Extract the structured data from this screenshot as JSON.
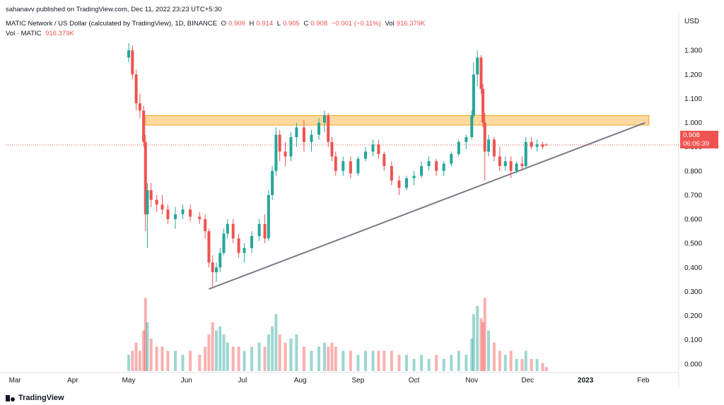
{
  "header": {
    "published": "sahanavv published on TradingView.com, Dec 11, 2022 23:23 UTC+5:30",
    "symbol": "MATIC Network / US Dollar (calculated by TradingView), 1D, BINANCE",
    "o_label": "O",
    "o_value": "0.909",
    "h_label": "H",
    "h_value": "0.914",
    "l_label": "L",
    "l_value": "0.905",
    "c_label": "C",
    "c_value": "0.908",
    "change": "−0.001 (−0.11%)",
    "vol_label": "Vol",
    "vol_value": "916.379K",
    "vol2_label": "Vol · MATIC",
    "vol2_value": "916.379K"
  },
  "brand": "TradingView",
  "price_tag": {
    "price": "0.908",
    "countdown": "06:06:39"
  },
  "colors": {
    "up": "#26a69a",
    "down": "#ef5350",
    "zone_fill": "#ffcc80",
    "zone_stroke": "#f5a623",
    "trendline": "#787b86"
  },
  "chart_data": {
    "type": "candlestick",
    "currency": "USD",
    "y_ticks": [
      "1.300",
      "1.200",
      "1.100",
      "1.000",
      "0.900",
      "0.800",
      "0.700",
      "0.600",
      "0.500",
      "0.400",
      "0.300",
      "0.200",
      "0.100",
      "0.000"
    ],
    "ylim": [
      -0.03,
      1.45
    ],
    "x_ticks": [
      "Mar",
      "Apr",
      "May",
      "Jun",
      "Jul",
      "Aug",
      "Sep",
      "Oct",
      "Nov",
      "Dec",
      "2023",
      "Feb"
    ],
    "bold_x_ticks": [
      "2023"
    ],
    "current_price": 0.908,
    "resistance_zone": {
      "low": 0.99,
      "high": 1.03,
      "from": "2022-05-10",
      "to": "2023-02-04"
    },
    "trendline": {
      "from": {
        "date": "2022-06-13",
        "price": 0.31
      },
      "to": {
        "date": "2023-02-02",
        "price": 1.0
      }
    },
    "candles": [
      [
        "2022-05-01",
        1.27,
        1.33,
        1.25,
        1.3,
        0.04
      ],
      [
        "2022-05-03",
        1.3,
        1.32,
        1.18,
        1.2,
        0.05
      ],
      [
        "2022-05-05",
        1.2,
        1.22,
        1.05,
        1.08,
        0.07
      ],
      [
        "2022-05-07",
        1.08,
        1.12,
        1.02,
        1.05,
        0.05
      ],
      [
        "2022-05-09",
        1.05,
        1.07,
        0.9,
        0.92,
        0.1
      ],
      [
        "2022-05-10",
        0.92,
        0.95,
        0.55,
        0.62,
        0.18
      ],
      [
        "2022-05-11",
        0.62,
        0.75,
        0.48,
        0.72,
        0.12
      ],
      [
        "2022-05-13",
        0.72,
        0.75,
        0.65,
        0.68,
        0.08
      ],
      [
        "2022-05-16",
        0.68,
        0.7,
        0.63,
        0.66,
        0.06
      ],
      [
        "2022-05-19",
        0.66,
        0.7,
        0.62,
        0.64,
        0.06
      ],
      [
        "2022-05-22",
        0.64,
        0.66,
        0.58,
        0.6,
        0.05
      ],
      [
        "2022-05-26",
        0.6,
        0.65,
        0.56,
        0.62,
        0.05
      ],
      [
        "2022-05-30",
        0.62,
        0.66,
        0.6,
        0.64,
        0.04
      ],
      [
        "2022-06-03",
        0.64,
        0.66,
        0.59,
        0.61,
        0.05
      ],
      [
        "2022-06-08",
        0.61,
        0.63,
        0.58,
        0.6,
        0.04
      ],
      [
        "2022-06-11",
        0.6,
        0.62,
        0.52,
        0.55,
        0.06
      ],
      [
        "2022-06-13",
        0.55,
        0.56,
        0.4,
        0.42,
        0.09
      ],
      [
        "2022-06-15",
        0.42,
        0.45,
        0.32,
        0.38,
        0.12
      ],
      [
        "2022-06-17",
        0.38,
        0.42,
        0.34,
        0.4,
        0.1
      ],
      [
        "2022-06-19",
        0.4,
        0.48,
        0.38,
        0.46,
        0.11
      ],
      [
        "2022-06-21",
        0.46,
        0.56,
        0.45,
        0.54,
        0.09
      ],
      [
        "2022-06-23",
        0.54,
        0.6,
        0.52,
        0.58,
        0.07
      ],
      [
        "2022-06-26",
        0.58,
        0.6,
        0.5,
        0.52,
        0.06
      ],
      [
        "2022-06-29",
        0.52,
        0.54,
        0.44,
        0.46,
        0.06
      ],
      [
        "2022-07-02",
        0.46,
        0.5,
        0.42,
        0.48,
        0.05
      ],
      [
        "2022-07-06",
        0.48,
        0.55,
        0.46,
        0.53,
        0.06
      ],
      [
        "2022-07-10",
        0.53,
        0.6,
        0.51,
        0.58,
        0.07
      ],
      [
        "2022-07-13",
        0.58,
        0.62,
        0.5,
        0.52,
        0.06
      ],
      [
        "2022-07-15",
        0.52,
        0.72,
        0.51,
        0.7,
        0.09
      ],
      [
        "2022-07-17",
        0.7,
        0.82,
        0.68,
        0.8,
        0.11
      ],
      [
        "2022-07-19",
        0.8,
        0.98,
        0.78,
        0.95,
        0.14
      ],
      [
        "2022-07-21",
        0.95,
        0.97,
        0.84,
        0.88,
        0.09
      ],
      [
        "2022-07-24",
        0.88,
        0.92,
        0.82,
        0.86,
        0.07
      ],
      [
        "2022-07-27",
        0.86,
        0.96,
        0.84,
        0.94,
        0.08
      ],
      [
        "2022-07-30",
        0.94,
        1.0,
        0.9,
        0.98,
        0.09
      ],
      [
        "2022-08-03",
        0.98,
        1.01,
        0.88,
        0.92,
        0.06
      ],
      [
        "2022-08-07",
        0.92,
        0.97,
        0.88,
        0.95,
        0.05
      ],
      [
        "2022-08-11",
        0.95,
        1.02,
        0.93,
        1.0,
        0.06
      ],
      [
        "2022-08-14",
        1.0,
        1.05,
        0.96,
        1.03,
        0.07
      ],
      [
        "2022-08-16",
        1.03,
        1.04,
        0.9,
        0.92,
        0.06
      ],
      [
        "2022-08-18",
        0.92,
        0.94,
        0.84,
        0.86,
        0.07
      ],
      [
        "2022-08-20",
        0.86,
        0.88,
        0.78,
        0.8,
        0.06
      ],
      [
        "2022-08-24",
        0.8,
        0.86,
        0.78,
        0.84,
        0.05
      ],
      [
        "2022-08-28",
        0.84,
        0.86,
        0.77,
        0.79,
        0.05
      ],
      [
        "2022-09-01",
        0.79,
        0.86,
        0.78,
        0.85,
        0.04
      ],
      [
        "2022-09-05",
        0.85,
        0.9,
        0.84,
        0.88,
        0.05
      ],
      [
        "2022-09-09",
        0.88,
        0.93,
        0.86,
        0.91,
        0.05
      ],
      [
        "2022-09-12",
        0.91,
        0.93,
        0.85,
        0.87,
        0.05
      ],
      [
        "2022-09-15",
        0.87,
        0.88,
        0.8,
        0.82,
        0.05
      ],
      [
        "2022-09-19",
        0.82,
        0.84,
        0.74,
        0.76,
        0.05
      ],
      [
        "2022-09-23",
        0.76,
        0.78,
        0.7,
        0.73,
        0.04
      ],
      [
        "2022-09-27",
        0.73,
        0.78,
        0.72,
        0.77,
        0.04
      ],
      [
        "2022-10-01",
        0.77,
        0.8,
        0.74,
        0.78,
        0.03
      ],
      [
        "2022-10-05",
        0.78,
        0.84,
        0.77,
        0.82,
        0.04
      ],
      [
        "2022-10-09",
        0.82,
        0.86,
        0.8,
        0.84,
        0.03
      ],
      [
        "2022-10-13",
        0.84,
        0.85,
        0.78,
        0.8,
        0.04
      ],
      [
        "2022-10-17",
        0.8,
        0.84,
        0.78,
        0.83,
        0.03
      ],
      [
        "2022-10-21",
        0.83,
        0.88,
        0.82,
        0.87,
        0.04
      ],
      [
        "2022-10-25",
        0.87,
        0.93,
        0.86,
        0.92,
        0.05
      ],
      [
        "2022-10-29",
        0.92,
        0.95,
        0.89,
        0.94,
        0.04
      ],
      [
        "2022-11-01",
        0.94,
        1.05,
        0.93,
        1.03,
        0.08
      ],
      [
        "2022-11-02",
        1.03,
        1.25,
        1.02,
        1.2,
        0.14
      ],
      [
        "2022-11-04",
        1.2,
        1.3,
        1.15,
        1.27,
        0.16
      ],
      [
        "2022-11-06",
        1.27,
        1.28,
        1.12,
        1.14,
        0.13
      ],
      [
        "2022-11-07",
        1.14,
        1.16,
        0.98,
        1.0,
        0.12
      ],
      [
        "2022-11-08",
        1.0,
        1.04,
        0.76,
        0.88,
        0.18
      ],
      [
        "2022-11-10",
        0.88,
        0.95,
        0.86,
        0.93,
        0.1
      ],
      [
        "2022-11-13",
        0.93,
        0.94,
        0.84,
        0.86,
        0.07
      ],
      [
        "2022-11-16",
        0.86,
        0.9,
        0.8,
        0.82,
        0.05
      ],
      [
        "2022-11-19",
        0.82,
        0.86,
        0.8,
        0.84,
        0.04
      ],
      [
        "2022-11-22",
        0.84,
        0.86,
        0.77,
        0.8,
        0.05
      ],
      [
        "2022-11-25",
        0.8,
        0.84,
        0.79,
        0.83,
        0.03
      ],
      [
        "2022-11-28",
        0.83,
        0.86,
        0.8,
        0.82,
        0.03
      ],
      [
        "2022-11-30",
        0.82,
        0.94,
        0.81,
        0.92,
        0.05
      ],
      [
        "2022-12-03",
        0.92,
        0.94,
        0.89,
        0.9,
        0.03
      ],
      [
        "2022-12-06",
        0.9,
        0.93,
        0.88,
        0.91,
        0.03
      ],
      [
        "2022-12-09",
        0.91,
        0.92,
        0.89,
        0.9,
        0.02
      ],
      [
        "2022-12-11",
        0.909,
        0.914,
        0.905,
        0.908,
        0.01
      ]
    ]
  }
}
